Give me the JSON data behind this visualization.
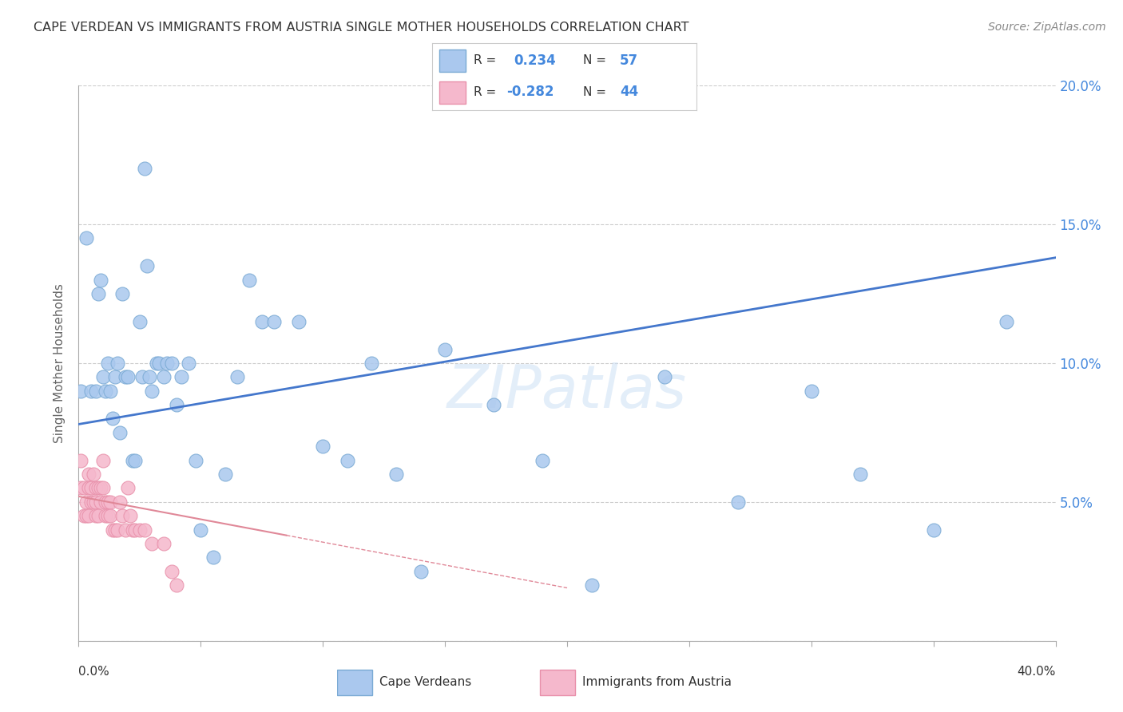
{
  "title": "CAPE VERDEAN VS IMMIGRANTS FROM AUSTRIA SINGLE MOTHER HOUSEHOLDS CORRELATION CHART",
  "source": "Source: ZipAtlas.com",
  "ylabel": "Single Mother Households",
  "yticks": [
    0.0,
    0.05,
    0.1,
    0.15,
    0.2
  ],
  "xlim": [
    0,
    0.4
  ],
  "ylim": [
    0,
    0.2
  ],
  "blue_R": 0.234,
  "blue_N": 57,
  "pink_R": -0.282,
  "pink_N": 44,
  "blue_label": "Cape Verdeans",
  "pink_label": "Immigrants from Austria",
  "blue_color": "#aac8ee",
  "blue_edge": "#7aaad4",
  "pink_color": "#f5b8cc",
  "pink_edge": "#e890aa",
  "blue_line_color": "#4477cc",
  "pink_line_color": "#e08898",
  "background_color": "#ffffff",
  "grid_color": "#cccccc",
  "title_color": "#333333",
  "watermark": "ZIPatlas",
  "blue_line_start_y": 0.078,
  "blue_line_end_y": 0.138,
  "pink_line_start_y": 0.052,
  "pink_line_end_x": 0.085,
  "pink_line_end_y": 0.038,
  "blue_x": [
    0.001,
    0.003,
    0.005,
    0.007,
    0.008,
    0.009,
    0.01,
    0.011,
    0.012,
    0.013,
    0.014,
    0.015,
    0.016,
    0.017,
    0.018,
    0.019,
    0.02,
    0.022,
    0.023,
    0.025,
    0.026,
    0.027,
    0.028,
    0.029,
    0.03,
    0.032,
    0.033,
    0.035,
    0.036,
    0.038,
    0.04,
    0.042,
    0.045,
    0.048,
    0.05,
    0.055,
    0.06,
    0.065,
    0.07,
    0.075,
    0.08,
    0.09,
    0.1,
    0.11,
    0.12,
    0.13,
    0.14,
    0.15,
    0.17,
    0.19,
    0.21,
    0.24,
    0.27,
    0.3,
    0.32,
    0.35,
    0.38
  ],
  "blue_y": [
    0.09,
    0.145,
    0.09,
    0.09,
    0.125,
    0.13,
    0.095,
    0.09,
    0.1,
    0.09,
    0.08,
    0.095,
    0.1,
    0.075,
    0.125,
    0.095,
    0.095,
    0.065,
    0.065,
    0.115,
    0.095,
    0.17,
    0.135,
    0.095,
    0.09,
    0.1,
    0.1,
    0.095,
    0.1,
    0.1,
    0.085,
    0.095,
    0.1,
    0.065,
    0.04,
    0.03,
    0.06,
    0.095,
    0.13,
    0.115,
    0.115,
    0.115,
    0.07,
    0.065,
    0.1,
    0.06,
    0.025,
    0.105,
    0.085,
    0.065,
    0.02,
    0.095,
    0.05,
    0.09,
    0.06,
    0.04,
    0.115
  ],
  "pink_x": [
    0.001,
    0.001,
    0.002,
    0.002,
    0.003,
    0.003,
    0.004,
    0.004,
    0.004,
    0.005,
    0.005,
    0.006,
    0.006,
    0.007,
    0.007,
    0.007,
    0.008,
    0.008,
    0.009,
    0.009,
    0.01,
    0.01,
    0.011,
    0.011,
    0.012,
    0.012,
    0.013,
    0.013,
    0.014,
    0.015,
    0.016,
    0.017,
    0.018,
    0.019,
    0.02,
    0.021,
    0.022,
    0.023,
    0.025,
    0.027,
    0.03,
    0.035,
    0.038,
    0.04
  ],
  "pink_y": [
    0.065,
    0.055,
    0.055,
    0.045,
    0.05,
    0.045,
    0.06,
    0.055,
    0.045,
    0.055,
    0.05,
    0.06,
    0.05,
    0.055,
    0.05,
    0.045,
    0.055,
    0.045,
    0.055,
    0.05,
    0.065,
    0.055,
    0.05,
    0.045,
    0.05,
    0.045,
    0.05,
    0.045,
    0.04,
    0.04,
    0.04,
    0.05,
    0.045,
    0.04,
    0.055,
    0.045,
    0.04,
    0.04,
    0.04,
    0.04,
    0.035,
    0.035,
    0.025,
    0.02
  ]
}
